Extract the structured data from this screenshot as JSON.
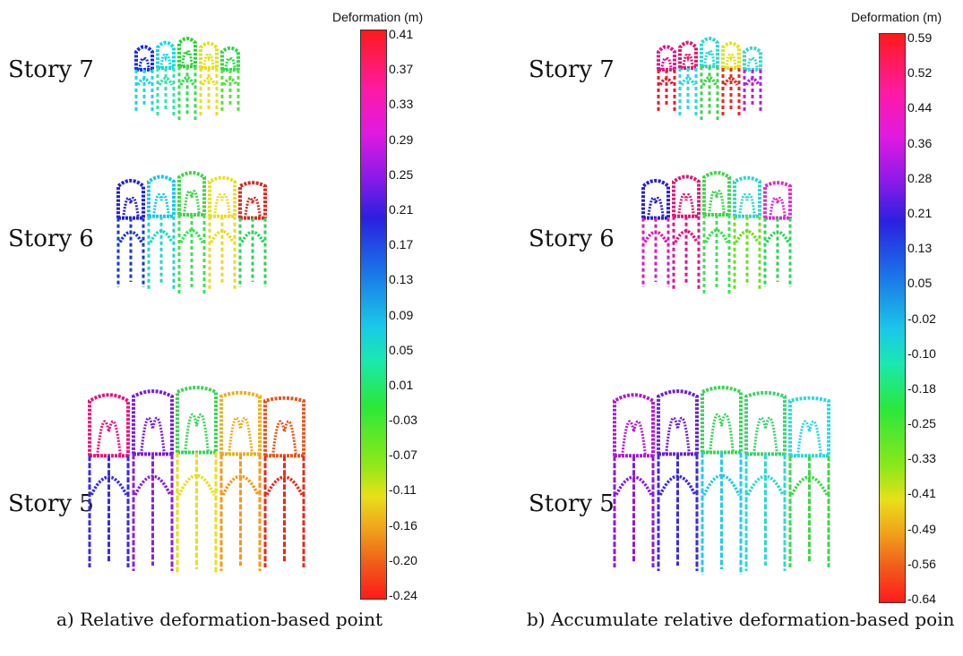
{
  "panels": [
    {
      "id": "a",
      "caption": "a) Relative deformation-based point",
      "colorbar": {
        "title": "Deformation (m)",
        "ticks": [
          "0.41",
          "0.37",
          "0.33",
          "0.29",
          "0.25",
          "0.21",
          "0.17",
          "0.13",
          "0.09",
          "0.05",
          "0.01",
          "-0.03",
          "-0.07",
          "-0.11",
          "-0.16",
          "-0.20",
          "-0.24"
        ],
        "range": [
          -0.24,
          0.41
        ]
      },
      "stories": [
        {
          "label": "Story 7",
          "colors": [
            "#1a2ee0",
            "#19d6e6",
            "#15d9e0",
            "#2fe6b0",
            "#2dcf39",
            "#35e055",
            "#e3e01a",
            "#e8e020",
            "#2cd94a",
            "#54e040"
          ]
        },
        {
          "label": "Story 6",
          "colors": [
            "#2520d8",
            "#1a3ad0",
            "#18c5e8",
            "#1ed8c8",
            "#3ed649",
            "#40e055",
            "#e6e020",
            "#e8dc24",
            "#d82a20",
            "#2dd35a"
          ]
        },
        {
          "label": "Story 5",
          "colors": [
            "#e8137d",
            "#3a2ae0",
            "#7a1ae0",
            "#8a22d8",
            "#3bd35a",
            "#e4e020",
            "#e8b020",
            "#f39a18",
            "#e8541a",
            "#e82a1a"
          ]
        }
      ]
    },
    {
      "id": "b",
      "caption": "b) Accumulate relative deformation-based poin",
      "colorbar": {
        "title": "Deformation (m)",
        "ticks": [
          "0.59",
          "0.52",
          "0.44",
          "0.36",
          "0.28",
          "0.21",
          "0.13",
          "0.05",
          "-0.02",
          "-0.10",
          "-0.18",
          "-0.25",
          "-0.33",
          "-0.41",
          "-0.49",
          "-0.56",
          "-0.64"
        ],
        "range": [
          -0.64,
          0.59
        ]
      },
      "stories": [
        {
          "label": "Story 7",
          "colors": [
            "#e0149a",
            "#e81a2a",
            "#e01870",
            "#2dd6e0",
            "#2bd8d0",
            "#3ed64a",
            "#e3e01a",
            "#e82a20",
            "#3bd8c8",
            "#b020d8"
          ]
        },
        {
          "label": "Story 6",
          "colors": [
            "#2520d8",
            "#d81ac0",
            "#e01878",
            "#e0138a",
            "#3ed649",
            "#40e055",
            "#2dd6c8",
            "#6ee020",
            "#d830c8",
            "#2dd35a"
          ]
        },
        {
          "label": "Story 5",
          "colors": [
            "#b01ad8",
            "#8a1ae0",
            "#6a20d8",
            "#3a2ae0",
            "#3bd35a",
            "#28c8e8",
            "#40d070",
            "#30d8d0",
            "#2bd8e0",
            "#3ed649"
          ]
        }
      ]
    }
  ]
}
